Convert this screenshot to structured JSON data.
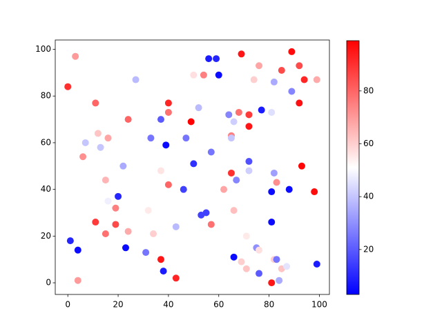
{
  "chart_data": {
    "type": "scatter",
    "x": [
      0,
      3,
      1,
      4,
      4,
      6,
      7,
      11,
      11,
      12,
      13,
      15,
      15,
      16,
      16,
      19,
      19,
      20,
      22,
      23,
      24,
      24,
      27,
      31,
      32,
      33,
      34,
      37,
      37,
      37,
      38,
      39,
      40,
      40,
      40,
      43,
      43,
      46,
      47,
      49,
      50,
      50,
      52,
      53,
      54,
      55,
      56,
      57,
      57,
      59,
      60,
      62,
      64,
      65,
      65,
      65,
      66,
      66,
      66,
      67,
      68,
      69,
      69,
      71,
      71,
      72,
      72,
      72,
      72,
      74,
      75,
      76,
      76,
      76,
      77,
      81,
      81,
      81,
      81,
      82,
      82,
      82,
      83,
      83,
      84,
      85,
      85,
      87,
      88,
      89,
      89,
      92,
      92,
      93,
      94,
      98,
      99,
      99
    ],
    "y": [
      84,
      97,
      18,
      14,
      1,
      54,
      60,
      77,
      26,
      64,
      58,
      44,
      21,
      62,
      35,
      32,
      25,
      37,
      50,
      15,
      70,
      22,
      87,
      13,
      31,
      62,
      21,
      70,
      48,
      10,
      5,
      59,
      77,
      73,
      42,
      24,
      2,
      40,
      62,
      69,
      89,
      51,
      75,
      29,
      89,
      30,
      96,
      56,
      25,
      96,
      89,
      40,
      72,
      63,
      62,
      47,
      69,
      31,
      11,
      44,
      73,
      98,
      9,
      6,
      20,
      72,
      67,
      52,
      48,
      87,
      15,
      93,
      14,
      4,
      74,
      73,
      39,
      26,
      0,
      86,
      47,
      10,
      43,
      10,
      1,
      91,
      6,
      7,
      40,
      99,
      82,
      93,
      77,
      50,
      87,
      39,
      87,
      8
    ],
    "c": [
      90,
      70,
      10,
      5,
      70,
      72,
      40,
      80,
      88,
      62,
      40,
      65,
      78,
      68,
      48,
      75,
      85,
      10,
      35,
      5,
      80,
      67,
      38,
      25,
      55,
      25,
      60,
      20,
      56,
      95,
      8,
      5,
      92,
      78,
      80,
      38,
      92,
      15,
      25,
      99,
      57,
      12,
      38,
      15,
      75,
      15,
      8,
      25,
      78,
      10,
      5,
      68,
      28,
      75,
      40,
      90,
      42,
      63,
      5,
      28,
      78,
      95,
      60,
      62,
      55,
      88,
      95,
      18,
      42,
      60,
      30,
      68,
      57,
      20,
      8,
      45,
      5,
      5,
      95,
      35,
      33,
      60,
      72,
      25,
      35,
      85,
      62,
      46,
      5,
      97,
      28,
      85,
      96,
      98,
      92,
      97,
      67,
      8
    ],
    "colormap": "bwr",
    "clim": [
      3,
      99
    ],
    "xlim": [
      -5,
      104
    ],
    "ylim": [
      -5,
      104
    ],
    "xticks": [
      0,
      20,
      40,
      60,
      80,
      100
    ],
    "yticks": [
      0,
      20,
      40,
      60,
      80,
      100
    ],
    "cticks": [
      20,
      40,
      60,
      80
    ]
  }
}
